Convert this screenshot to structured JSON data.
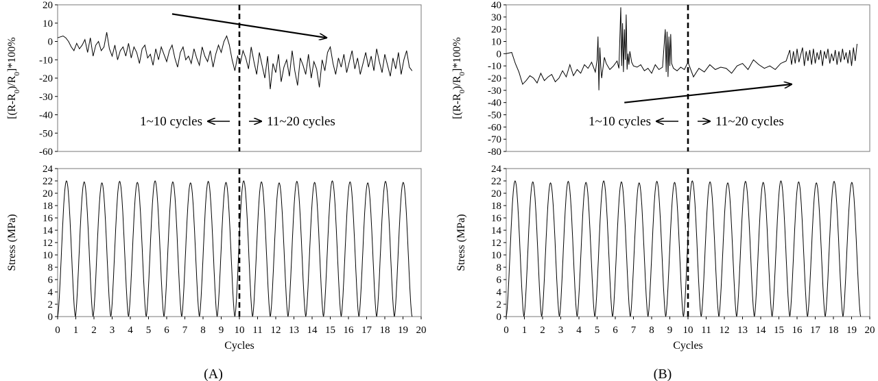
{
  "figure": {
    "panel_labels": [
      "(A)",
      "(B)"
    ]
  },
  "chart_data": [
    {
      "id": "A-resistance",
      "type": "line",
      "ylabel": "[(R-R0)/R0]*100%",
      "ylim": [
        -60,
        20
      ],
      "yticks": [
        -60,
        -50,
        -40,
        -30,
        -20,
        -10,
        0,
        10,
        20
      ],
      "xlim": [
        0,
        20
      ],
      "divider_x": 10,
      "annotations": [
        "1~10 cycles",
        "11~20 cycles"
      ],
      "trend_arrow": {
        "from": [
          6.3,
          15
        ],
        "to": [
          14.8,
          2
        ]
      },
      "series": [
        {
          "x": [
            0,
            0.15,
            0.3,
            0.45,
            0.6,
            0.75,
            0.9,
            1.05,
            1.2,
            1.35,
            1.5,
            1.65,
            1.8,
            1.95,
            2.1,
            2.25,
            2.4,
            2.55,
            2.7,
            2.85,
            3.0,
            3.15,
            3.3,
            3.45,
            3.6,
            3.75,
            3.9,
            4.05,
            4.2,
            4.35,
            4.5,
            4.65,
            4.8,
            4.95,
            5.1,
            5.25,
            5.4,
            5.55,
            5.7,
            5.85,
            6.0,
            6.15,
            6.3,
            6.45,
            6.6,
            6.75,
            6.9,
            7.05,
            7.2,
            7.35,
            7.5,
            7.65,
            7.8,
            7.95,
            8.1,
            8.25,
            8.4,
            8.55,
            8.7,
            8.85,
            9.0,
            9.15,
            9.3,
            9.45,
            9.6,
            9.75,
            9.9,
            10.05,
            10.2,
            10.35,
            10.5,
            10.65,
            10.8,
            10.95,
            11.1,
            11.25,
            11.4,
            11.55,
            11.7,
            11.85,
            12.0,
            12.15,
            12.3,
            12.45,
            12.6,
            12.75,
            12.9,
            13.05,
            13.2,
            13.35,
            13.5,
            13.65,
            13.8,
            13.95,
            14.1,
            14.25,
            14.4,
            14.55,
            14.7,
            14.85,
            15.0,
            15.15,
            15.3,
            15.45,
            15.6,
            15.75,
            15.9,
            16.05,
            16.2,
            16.35,
            16.5,
            16.65,
            16.8,
            16.95,
            17.1,
            17.25,
            17.4,
            17.55,
            17.7,
            17.85,
            18.0,
            18.15,
            18.3,
            18.45,
            18.6,
            18.75,
            18.9,
            19.05,
            19.2,
            19.35,
            19.5
          ],
          "y": [
            2,
            2.5,
            3,
            2,
            0,
            -3,
            -5,
            -1,
            -4,
            -2,
            1,
            -6,
            2,
            -8,
            -2,
            0,
            -5,
            -3,
            5,
            -4,
            -8,
            -2,
            -10,
            -5,
            -3,
            -8,
            -1,
            -9,
            -3,
            -6,
            -12,
            -4,
            -2,
            -9,
            -7,
            -13,
            -4,
            -10,
            -3,
            -7,
            -11,
            -5,
            -2,
            -9,
            -14,
            -6,
            -3,
            -10,
            -8,
            -12,
            -4,
            -9,
            -13,
            -3,
            -8,
            -11,
            -5,
            -14,
            -7,
            -2,
            -6,
            0,
            3,
            -2,
            -10,
            -16,
            -8,
            -12,
            -5,
            -9,
            -15,
            -3,
            -11,
            -18,
            -6,
            -13,
            -20,
            -8,
            -26,
            -12,
            -17,
            -7,
            -22,
            -14,
            -10,
            -19,
            -5,
            -16,
            -24,
            -9,
            -13,
            -18,
            -7,
            -20,
            -11,
            -15,
            -25,
            -10,
            -16,
            -6,
            -3,
            -12,
            -18,
            -9,
            -14,
            -7,
            -17,
            -11,
            -5,
            -15,
            -9,
            -18,
            -12,
            -6,
            -14,
            -8,
            -16,
            -4,
            -11,
            -17,
            -7,
            -13,
            -19,
            -9,
            -15,
            -6,
            -18,
            -10,
            -5,
            -14,
            -16
          ]
        }
      ]
    },
    {
      "id": "A-stress",
      "type": "line",
      "xlabel": "Cycles",
      "ylabel": "Stress (MPa)",
      "ylim": [
        0,
        24
      ],
      "yticks": [
        0,
        2,
        4,
        6,
        8,
        10,
        12,
        14,
        16,
        18,
        20,
        22,
        24
      ],
      "xlim": [
        0,
        20
      ],
      "xticks": [
        0,
        1,
        2,
        3,
        4,
        5,
        6,
        7,
        8,
        9,
        10,
        11,
        12,
        13,
        14,
        15,
        16,
        17,
        18,
        19,
        20
      ],
      "divider_x": 10,
      "peak_max": 22,
      "cycle_period": 0.975,
      "num_cycles": 20
    },
    {
      "id": "B-resistance",
      "type": "line",
      "ylabel": "[(R-R0)/R0]*100%",
      "ylim": [
        -80,
        40
      ],
      "yticks": [
        -80,
        -70,
        -60,
        -50,
        -40,
        -30,
        -20,
        -10,
        0,
        10,
        20,
        30,
        40
      ],
      "xlim": [
        0,
        20
      ],
      "divider_x": 10,
      "annotations": [
        "1~10 cycles",
        "11~20 cycles"
      ],
      "trend_arrow": {
        "from": [
          6.5,
          -40
        ],
        "to": [
          15.7,
          -25
        ]
      },
      "series": [
        {
          "x": [
            0,
            0.3,
            0.5,
            0.7,
            0.8,
            0.9,
            1.1,
            1.3,
            1.5,
            1.7,
            1.9,
            2.1,
            2.3,
            2.5,
            2.7,
            2.9,
            3.1,
            3.3,
            3.5,
            3.7,
            3.9,
            4.1,
            4.3,
            4.5,
            4.7,
            4.9,
            5.0,
            5.05,
            5.1,
            5.15,
            5.2,
            5.25,
            5.3,
            5.4,
            5.5,
            5.7,
            5.9,
            6.1,
            6.2,
            6.3,
            6.35,
            6.4,
            6.45,
            6.5,
            6.55,
            6.6,
            6.65,
            6.7,
            6.75,
            6.8,
            6.9,
            7.0,
            7.2,
            7.4,
            7.6,
            7.8,
            8.0,
            8.2,
            8.4,
            8.6,
            8.75,
            8.8,
            8.85,
            8.9,
            8.95,
            9.0,
            9.05,
            9.1,
            9.2,
            9.4,
            9.6,
            9.8,
            10.0,
            10.3,
            10.6,
            10.9,
            11.2,
            11.5,
            11.8,
            12.1,
            12.4,
            12.7,
            13.0,
            13.3,
            13.6,
            13.9,
            14.2,
            14.5,
            14.8,
            15.1,
            15.4,
            15.6,
            15.7,
            15.8,
            15.9,
            16.0,
            16.1,
            16.2,
            16.3,
            16.4,
            16.5,
            16.6,
            16.7,
            16.8,
            16.9,
            17.0,
            17.1,
            17.2,
            17.3,
            17.4,
            17.5,
            17.6,
            17.7,
            17.8,
            17.9,
            18.0,
            18.1,
            18.2,
            18.3,
            18.4,
            18.5,
            18.6,
            18.7,
            18.8,
            18.9,
            19.0,
            19.1,
            19.2,
            19.3
          ],
          "y": [
            0,
            1,
            -8,
            -15,
            -20,
            -25,
            -22,
            -18,
            -20,
            -24,
            -16,
            -22,
            -19,
            -17,
            -23,
            -20,
            -14,
            -19,
            -9,
            -18,
            -13,
            -16,
            -9,
            -12,
            -7,
            -15,
            -5,
            14,
            -30,
            5,
            -10,
            -20,
            -14,
            -3,
            -8,
            -13,
            -10,
            -6,
            -12,
            38,
            -10,
            25,
            -15,
            20,
            -5,
            32,
            -13,
            0,
            -9,
            2,
            -7,
            -10,
            -11,
            -9,
            -14,
            -12,
            -16,
            -9,
            -13,
            -11,
            20,
            -15,
            18,
            -19,
            14,
            -10,
            16,
            -8,
            -12,
            -14,
            -11,
            -13,
            -7,
            -19,
            -12,
            -15,
            -9,
            -13,
            -11,
            -12,
            -16,
            -10,
            -8,
            -13,
            -5,
            -9,
            -12,
            -10,
            -13,
            -8,
            -6,
            3,
            -9,
            2,
            -8,
            4,
            -7,
            -1,
            5,
            -10,
            2,
            -6,
            3,
            -9,
            4,
            -8,
            1,
            -5,
            3,
            -10,
            2,
            -4,
            4,
            -8,
            0,
            -6,
            3,
            -9,
            2,
            -7,
            4,
            -5,
            1,
            -8,
            3,
            -10,
            5,
            -6,
            8
          ]
        }
      ]
    },
    {
      "id": "B-stress",
      "type": "line",
      "xlabel": "Cycles",
      "ylabel": "Stress (MPa)",
      "ylim": [
        0,
        24
      ],
      "yticks": [
        0,
        2,
        4,
        6,
        8,
        10,
        12,
        14,
        16,
        18,
        20,
        22,
        24
      ],
      "xlim": [
        0,
        20
      ],
      "xticks": [
        0,
        1,
        2,
        3,
        4,
        5,
        6,
        7,
        8,
        9,
        10,
        11,
        12,
        13,
        14,
        15,
        16,
        17,
        18,
        19,
        20
      ],
      "divider_x": 10,
      "peak_max": 22,
      "cycle_period": 0.975,
      "num_cycles": 20
    }
  ]
}
